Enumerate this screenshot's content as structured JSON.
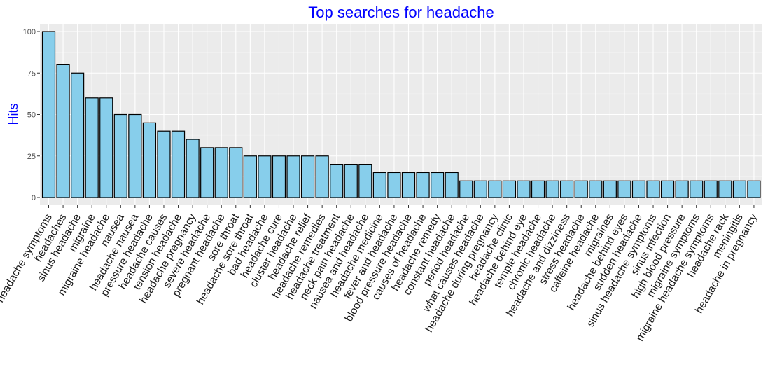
{
  "chart_data": {
    "type": "bar",
    "title": "Top searches for headache",
    "xlabel": "",
    "ylabel": "Hits",
    "ylim": [
      0,
      100
    ],
    "yticks": [
      0,
      25,
      50,
      75,
      100
    ],
    "grid": true,
    "colors": {
      "bar_fill": "#87ceeb",
      "bar_stroke": "#000000",
      "panel": "#ebebeb",
      "title": "#0000ff",
      "ylabel": "#0000ff"
    },
    "categories": [
      "headache symptoms",
      "headaches",
      "sinus headache",
      "migraine",
      "migraine headache",
      "nausea",
      "headache nausea",
      "pressure headache",
      "headache causes",
      "tension headache",
      "headache pregnancy",
      "severe headache",
      "pregnant headache",
      "sore throat",
      "headache sore throat",
      "bad headache",
      "headache cure",
      "cluster headache",
      "headache relief",
      "headache remedies",
      "headache treatment",
      "neck pain headache",
      "nausea and headache",
      "headache medicine",
      "fever and headache",
      "blood pressure headache",
      "causes of headache",
      "headache remedy",
      "constant headache",
      "period headache",
      "what causes headache",
      "headache during pregnancy",
      "headache clinic",
      "headache behind eye",
      "temple headache",
      "chronic headache",
      "headache and dizziness",
      "stress headache",
      "caffeine headache",
      "migraines",
      "headache behind eyes",
      "sudden headache",
      "sinus headache symptoms",
      "sinus infection",
      "high blood pressure",
      "migraine symptoms",
      "migraine headache symptoms",
      "headache rack",
      "meningitis",
      "headache in pregnancy"
    ],
    "values": [
      100,
      80,
      75,
      60,
      60,
      50,
      50,
      45,
      40,
      40,
      35,
      30,
      30,
      30,
      25,
      25,
      25,
      25,
      25,
      25,
      20,
      20,
      20,
      15,
      15,
      15,
      15,
      15,
      15,
      10,
      10,
      10,
      10,
      10,
      10,
      10,
      10,
      10,
      10,
      10,
      10,
      10,
      10,
      10,
      10,
      10,
      10,
      10,
      10,
      10
    ]
  }
}
